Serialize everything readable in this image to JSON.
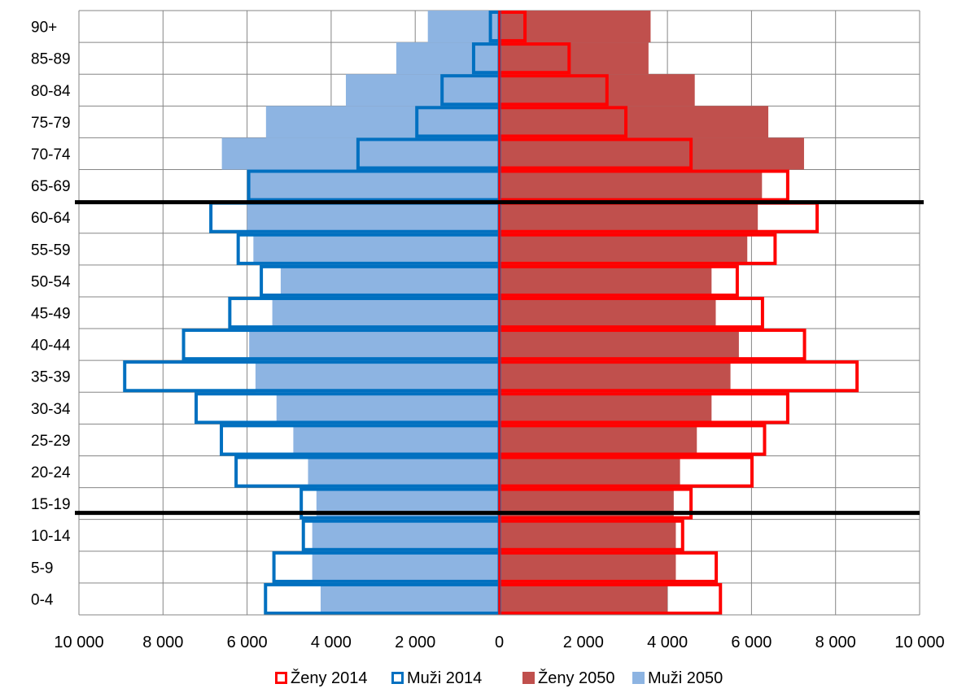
{
  "chart_data": {
    "type": "bar",
    "orientation": "horizontal",
    "layout": "population-pyramid",
    "categories": [
      "0-4",
      "5-9",
      "10-14",
      "15-19",
      "20-24",
      "25-29",
      "30-34",
      "35-39",
      "40-44",
      "45-49",
      "50-54",
      "55-59",
      "60-64",
      "65-69",
      "70-74",
      "75-79",
      "80-84",
      "85-89",
      "90+"
    ],
    "x_range": [
      -10000,
      10000
    ],
    "x_ticks": [
      {
        "value": -10000,
        "label": "10 000"
      },
      {
        "value": -8000,
        "label": "8 000"
      },
      {
        "value": -6000,
        "label": "6 000"
      },
      {
        "value": -4000,
        "label": "4 000"
      },
      {
        "value": -2000,
        "label": "2 000"
      },
      {
        "value": 0,
        "label": "0"
      },
      {
        "value": 2000,
        "label": "2 000"
      },
      {
        "value": 4000,
        "label": "4 000"
      },
      {
        "value": 6000,
        "label": "6 000"
      },
      {
        "value": 8000,
        "label": "8 000"
      },
      {
        "value": 10000,
        "label": "10 000"
      }
    ],
    "grid": true,
    "legend_position": "bottom",
    "series": [
      {
        "name": "Ženy 2014",
        "side": "right",
        "style": "outline",
        "color": "#ff0000",
        "values": [
          5300,
          5200,
          4400,
          4600,
          6050,
          6350,
          6900,
          8550,
          7300,
          6300,
          5700,
          6600,
          7600,
          6900,
          4600,
          3050,
          2600,
          1700,
          650
        ]
      },
      {
        "name": "Muži 2014",
        "side": "left",
        "style": "outline",
        "color": "#0070c0",
        "values": [
          5600,
          5400,
          4700,
          4750,
          6300,
          6650,
          7250,
          8950,
          7550,
          6450,
          5700,
          6250,
          6900,
          6000,
          3400,
          2000,
          1400,
          650,
          250
        ]
      },
      {
        "name": "Ženy 2050",
        "side": "right",
        "style": "filled",
        "color": "#c0504d",
        "values": [
          4000,
          4200,
          4200,
          4150,
          4300,
          4700,
          5050,
          5500,
          5700,
          5150,
          5050,
          5900,
          6150,
          6250,
          7250,
          6400,
          4650,
          3550,
          3600
        ]
      },
      {
        "name": "Muži 2050",
        "side": "left",
        "style": "filled",
        "color": "#8db4e2",
        "values": [
          4250,
          4450,
          4450,
          4350,
          4550,
          4900,
          5300,
          5800,
          5950,
          5400,
          5200,
          5850,
          6000,
          6000,
          6600,
          5550,
          3650,
          2450,
          1700
        ]
      }
    ],
    "reference_lines": [
      {
        "between": [
          "60-64",
          "65-69"
        ]
      },
      {
        "between": [
          "10-14",
          "15-19"
        ]
      }
    ]
  }
}
